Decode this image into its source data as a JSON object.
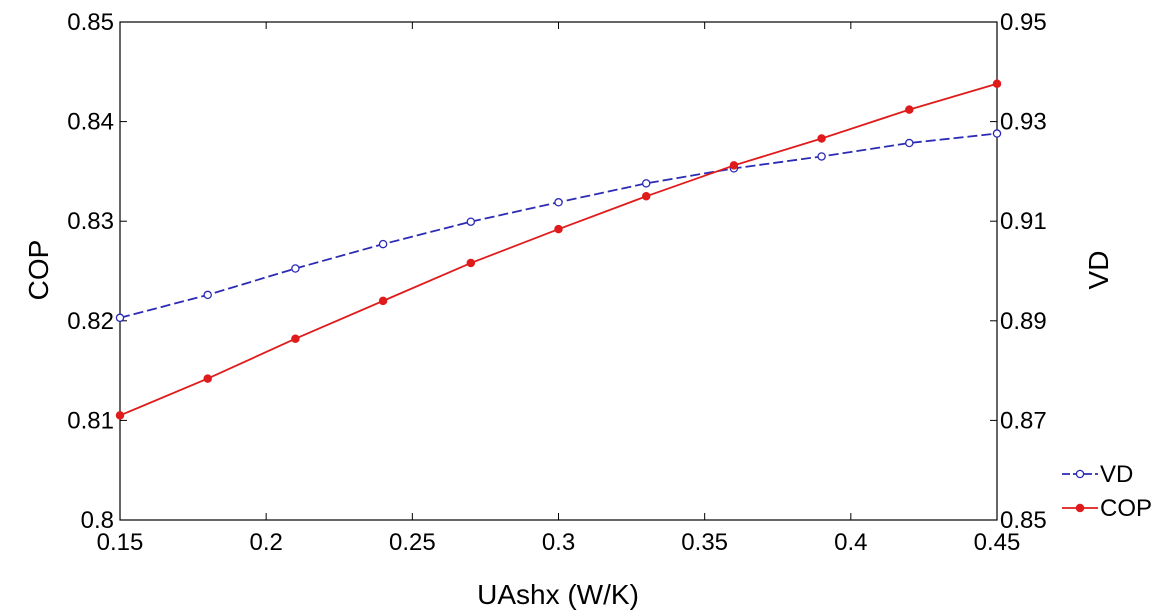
{
  "chart_data": {
    "type": "line",
    "xlabel": "UAshx  (W/K)",
    "ylabel": "COP",
    "y2label": "VD",
    "xlim": [
      0.15,
      0.45
    ],
    "ylim": [
      0.8,
      0.85
    ],
    "y2lim": [
      0.85,
      0.95
    ],
    "xticks": [
      "0.15",
      "0.2",
      "0.25",
      "0.3",
      "0.35",
      "0.4",
      "0.45"
    ],
    "yticks": [
      "0.8",
      "0.81",
      "0.82",
      "0.83",
      "0.84",
      "0.85"
    ],
    "y2ticks": [
      "0.85",
      "0.87",
      "0.89",
      "0.91",
      "0.93",
      "0.95"
    ],
    "grid": false,
    "legend_position": "bottom-right outside",
    "series": [
      {
        "name": "VD",
        "axis": "right",
        "color": "#2B2BB5",
        "line_style": "dashed",
        "marker": "open-circle",
        "x": [
          0.15,
          0.18,
          0.21,
          0.24,
          0.27,
          0.3,
          0.33,
          0.36,
          0.39,
          0.42,
          0.45
        ],
        "y": [
          0.8906,
          0.8952,
          0.9005,
          0.9054,
          0.9099,
          0.9138,
          0.9176,
          0.9206,
          0.923,
          0.9257,
          0.9276
        ]
      },
      {
        "name": "COP",
        "axis": "left",
        "color": "#E01B1B",
        "line_style": "solid",
        "marker": "filled-circle",
        "x": [
          0.15,
          0.18,
          0.21,
          0.24,
          0.27,
          0.3,
          0.33,
          0.36,
          0.39,
          0.42,
          0.45
        ],
        "y": [
          0.8105,
          0.8142,
          0.8182,
          0.822,
          0.8258,
          0.8292,
          0.8325,
          0.8356,
          0.8383,
          0.8412,
          0.8438
        ]
      }
    ]
  }
}
